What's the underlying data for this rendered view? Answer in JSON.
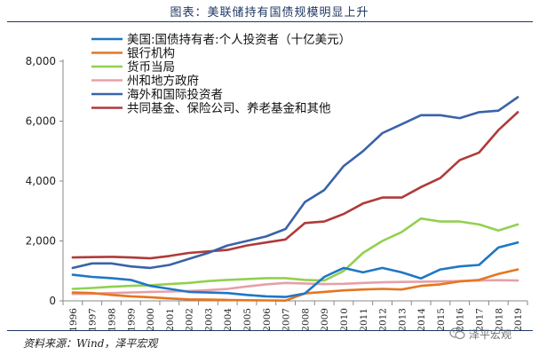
{
  "header": {
    "title": "图表：美联储持有国债规模明显上升"
  },
  "footer": {
    "source": "资料来源：Wind，泽平宏观",
    "watermark": "泽平宏观"
  },
  "watermark_icon": "wechat-icon",
  "chart_data": {
    "type": "line",
    "x": [
      "1996",
      "1997",
      "1998",
      "1999",
      "2000",
      "2001",
      "2002",
      "2003",
      "2004",
      "2005",
      "2006",
      "2007",
      "2008",
      "2009",
      "2010",
      "2011",
      "2012",
      "2013",
      "2014",
      "2015",
      "2016",
      "2017",
      "2018",
      "2019"
    ],
    "ylim": [
      0,
      8000
    ],
    "yticks": [
      0,
      2000,
      4000,
      6000,
      8000
    ],
    "ytick_labels": [
      "0",
      "2,000",
      "4,000",
      "6,000",
      "8,000"
    ],
    "grid": false,
    "legend_position": "top-left",
    "series": [
      {
        "name": "美国:国债持有者:个人投资者（十亿美元）",
        "color": "#1f77c4",
        "values": [
          870,
          800,
          760,
          700,
          500,
          400,
          300,
          280,
          260,
          200,
          150,
          130,
          250,
          800,
          1100,
          950,
          1100,
          950,
          750,
          1050,
          1150,
          1200,
          1780,
          1950
        ]
      },
      {
        "name": "银行机构",
        "color": "#e6761f",
        "values": [
          280,
          260,
          200,
          150,
          120,
          80,
          50,
          40,
          30,
          20,
          15,
          10,
          250,
          300,
          350,
          380,
          400,
          380,
          500,
          550,
          650,
          700,
          900,
          1050
        ]
      },
      {
        "name": "货币当局",
        "color": "#92d050",
        "values": [
          400,
          430,
          470,
          500,
          520,
          560,
          600,
          660,
          700,
          730,
          760,
          760,
          700,
          680,
          1000,
          1600,
          2000,
          2300,
          2750,
          2650,
          2650,
          2550,
          2350,
          2550
        ]
      },
      {
        "name": "州和地方政府",
        "color": "#e6a0a8",
        "values": [
          230,
          240,
          260,
          280,
          300,
          310,
          330,
          360,
          400,
          480,
          550,
          600,
          580,
          560,
          570,
          600,
          620,
          630,
          640,
          650,
          660,
          680,
          690,
          680
        ]
      },
      {
        "name": "海外和国际投资者",
        "color": "#3a63a8",
        "values": [
          1100,
          1250,
          1250,
          1150,
          1100,
          1200,
          1400,
          1600,
          1850,
          2000,
          2150,
          2400,
          3300,
          3700,
          4500,
          5000,
          5600,
          5900,
          6200,
          6200,
          6100,
          6300,
          6350,
          6800
        ]
      },
      {
        "name": "共同基金、保险公司、养老基金和其他",
        "color": "#b03a3a",
        "values": [
          1450,
          1460,
          1470,
          1450,
          1420,
          1500,
          1600,
          1650,
          1700,
          1850,
          1950,
          2050,
          2600,
          2650,
          2900,
          3250,
          3450,
          3450,
          3800,
          4100,
          4700,
          4950,
          5700,
          6300
        ]
      }
    ]
  }
}
